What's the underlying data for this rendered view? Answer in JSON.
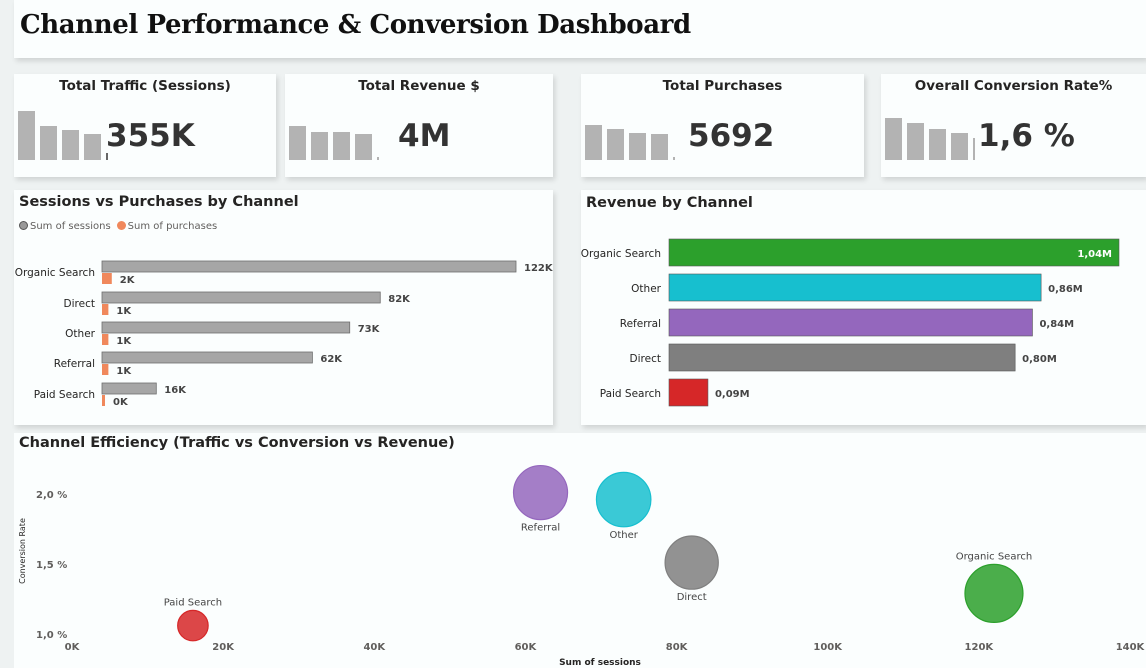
{
  "title": "Channel Performance & Conversion Dashboard",
  "kpis": [
    {
      "label": "Total Traffic (Sessions)",
      "value": "355K"
    },
    {
      "label": "Total Revenue $",
      "value": "4M"
    },
    {
      "label": "Total Purchases",
      "value": "5692"
    },
    {
      "label": "Overall Conversion Rate%",
      "value": "1,6 %"
    }
  ],
  "colors": {
    "sessions": "#a6a6a6",
    "purchases": "#f0885c",
    "organic": "#2ca02c",
    "other": "#17bfcf",
    "referral": "#9467bd",
    "direct": "#7f7f7f",
    "paid": "#d62728",
    "spark": "#b3b3b3",
    "spark_last": "#666666"
  },
  "chart_data": [
    {
      "type": "bar",
      "orientation": "horizontal",
      "title": "Sessions vs Purchases by Channel",
      "categories": [
        "Organic Search",
        "Direct",
        "Other",
        "Referral",
        "Paid Search"
      ],
      "series": [
        {
          "name": "Sum of sessions",
          "values": [
            122000,
            82000,
            73000,
            62000,
            16000
          ],
          "labels": [
            "122K",
            "82K",
            "73K",
            "62K",
            "16K"
          ]
        },
        {
          "name": "Sum of purchases",
          "values": [
            2000,
            1000,
            1000,
            1000,
            0
          ],
          "labels": [
            "2K",
            "1K",
            "1K",
            "1K",
            "0K"
          ]
        }
      ],
      "legend": "top-left"
    },
    {
      "type": "bar",
      "orientation": "horizontal",
      "title": "Revenue by Channel",
      "categories": [
        "Organic Search",
        "Other",
        "Referral",
        "Direct",
        "Paid Search"
      ],
      "values": [
        1.04,
        0.86,
        0.84,
        0.8,
        0.09
      ],
      "labels": [
        "1,04M",
        "0,86M",
        "0,84M",
        "0,80M",
        "0,09M"
      ]
    },
    {
      "type": "scatter",
      "title": "Channel Efficiency (Traffic vs Conversion vs Revenue)",
      "xlabel": "Sum of sessions",
      "ylabel": "Conversion Rate",
      "xlim": [
        0,
        140000
      ],
      "ylim": [
        1.0,
        2.0
      ],
      "x_ticks": [
        "0K",
        "20K",
        "40K",
        "60K",
        "80K",
        "100K",
        "120K",
        "140K"
      ],
      "y_ticks": [
        "1,0 %",
        "1,5 %",
        "2,0 %"
      ],
      "points": [
        {
          "label": "Organic Search",
          "x": 122000,
          "y": 1.29,
          "size": 1.04
        },
        {
          "label": "Direct",
          "x": 82000,
          "y": 1.51,
          "size": 0.8
        },
        {
          "label": "Other",
          "x": 73000,
          "y": 1.96,
          "size": 0.86
        },
        {
          "label": "Referral",
          "x": 62000,
          "y": 2.01,
          "size": 0.84
        },
        {
          "label": "Paid Search",
          "x": 16000,
          "y": 1.06,
          "size": 0.09
        }
      ]
    }
  ]
}
